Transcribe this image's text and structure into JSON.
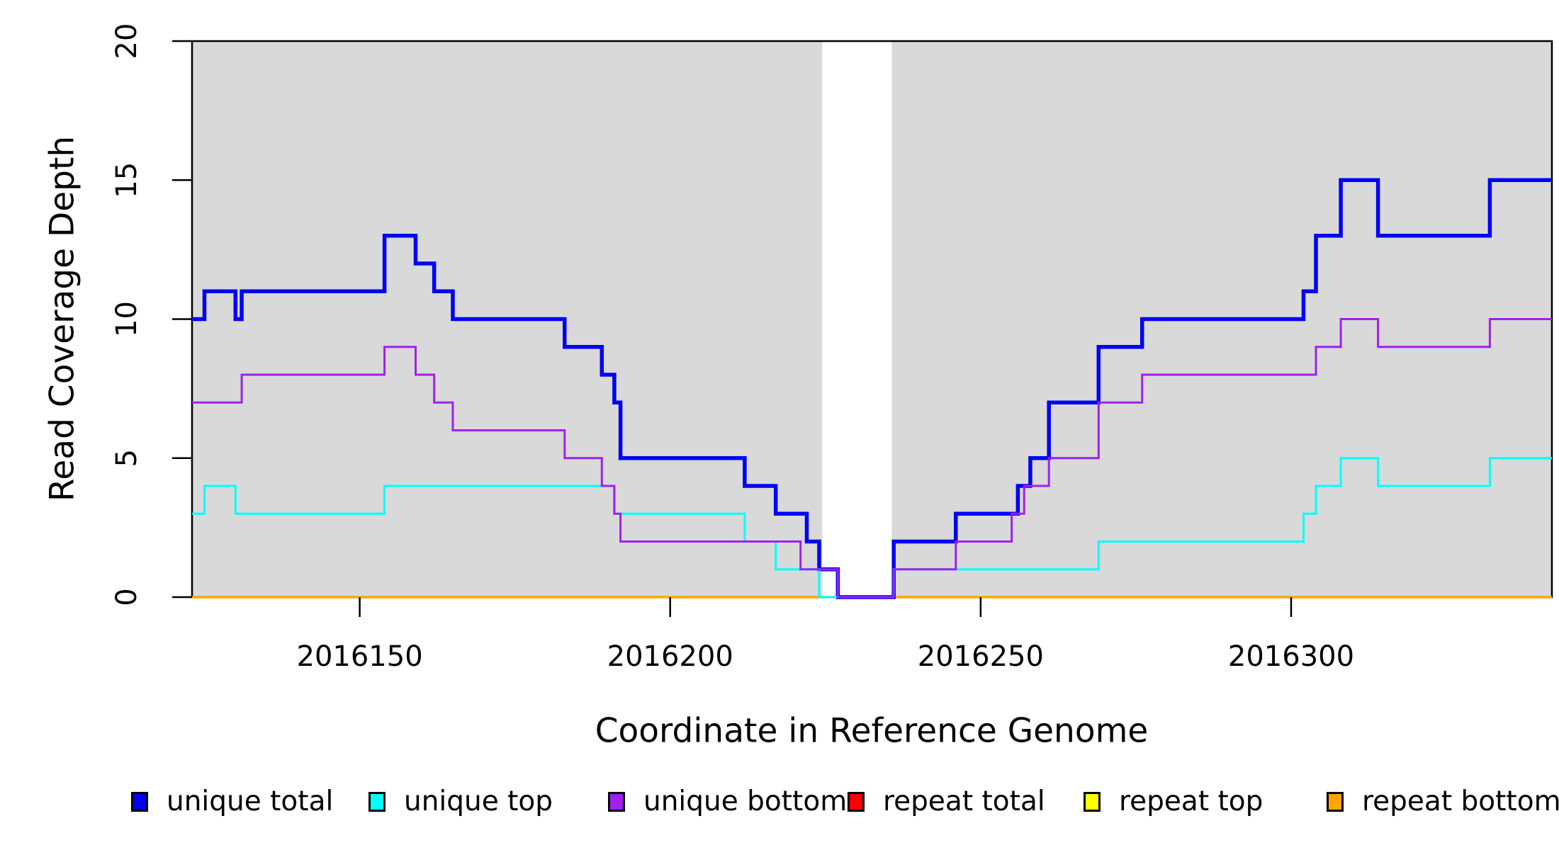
{
  "axes": {
    "x_label": "Coordinate in Reference Genome",
    "y_label": "Read Coverage Depth"
  },
  "legend": {
    "entries": [
      {
        "label": "unique total",
        "color": "#0000F5"
      },
      {
        "label": "unique top",
        "color": "#00FFFF"
      },
      {
        "label": "unique bottom",
        "color": "#A020F0"
      },
      {
        "label": "repeat total",
        "color": "#FF0000"
      },
      {
        "label": "repeat top",
        "color": "#FFFF00"
      },
      {
        "label": "repeat bottom",
        "color": "#FFA500"
      }
    ]
  },
  "chart_data": {
    "type": "line",
    "subtype": "step-coverage",
    "title": "",
    "xlabel": "Coordinate in Reference Genome",
    "ylabel": "Read Coverage Depth",
    "xlim": [
      2016123,
      2016342
    ],
    "ylim": [
      0,
      20
    ],
    "x_ticks": [
      2016150,
      2016200,
      2016250,
      2016300
    ],
    "y_ticks": [
      0,
      5,
      10,
      15,
      20
    ],
    "grid": false,
    "plot_background": "#D9D9D9",
    "plot_border_color": "#000000",
    "zero_coverage_band": {
      "x_start": 2016224.5,
      "x_end": 2016235.7,
      "color": "#FFFFFF"
    },
    "legend_position": "bottom",
    "series": [
      {
        "name": "repeat total",
        "color": "#FF0000",
        "width": 3,
        "steps": [
          [
            2016123,
            0
          ]
        ]
      },
      {
        "name": "repeat top",
        "color": "#FFFF00",
        "width": 3,
        "steps": [
          [
            2016123,
            0
          ]
        ]
      },
      {
        "name": "repeat bottom",
        "color": "#FFA500",
        "width": 3.5,
        "steps": [
          [
            2016123,
            0
          ]
        ]
      },
      {
        "name": "unique total",
        "color": "#0000F5",
        "width": 5.5,
        "steps": [
          [
            2016123,
            10
          ],
          [
            2016125,
            11
          ],
          [
            2016130,
            10
          ],
          [
            2016131,
            11
          ],
          [
            2016154,
            13
          ],
          [
            2016159,
            12
          ],
          [
            2016162,
            11
          ],
          [
            2016165,
            10
          ],
          [
            2016183,
            9
          ],
          [
            2016189,
            8
          ],
          [
            2016191,
            7
          ],
          [
            2016192,
            5
          ],
          [
            2016212,
            4
          ],
          [
            2016217,
            3
          ],
          [
            2016222,
            2
          ],
          [
            2016224,
            1
          ],
          [
            2016227,
            0
          ],
          [
            2016236,
            2
          ],
          [
            2016246,
            3
          ],
          [
            2016256,
            4
          ],
          [
            2016258,
            5
          ],
          [
            2016261,
            7
          ],
          [
            2016269,
            9
          ],
          [
            2016276,
            10
          ],
          [
            2016302,
            11
          ],
          [
            2016304,
            13
          ],
          [
            2016308,
            15
          ],
          [
            2016314,
            13
          ],
          [
            2016332,
            15
          ]
        ]
      },
      {
        "name": "unique top",
        "color": "#00FFFF",
        "width": 3,
        "steps": [
          [
            2016123,
            3
          ],
          [
            2016125,
            4
          ],
          [
            2016130,
            3
          ],
          [
            2016154,
            4
          ],
          [
            2016191,
            3
          ],
          [
            2016212,
            2
          ],
          [
            2016217,
            1
          ],
          [
            2016224,
            0
          ],
          [
            2016236,
            1
          ],
          [
            2016269,
            2
          ],
          [
            2016302,
            3
          ],
          [
            2016304,
            4
          ],
          [
            2016308,
            5
          ],
          [
            2016314,
            4
          ],
          [
            2016332,
            5
          ]
        ]
      },
      {
        "name": "unique bottom",
        "color": "#A020F0",
        "width": 3,
        "steps": [
          [
            2016123,
            7
          ],
          [
            2016131,
            8
          ],
          [
            2016154,
            9
          ],
          [
            2016159,
            8
          ],
          [
            2016162,
            7
          ],
          [
            2016165,
            6
          ],
          [
            2016183,
            5
          ],
          [
            2016189,
            4
          ],
          [
            2016191,
            3
          ],
          [
            2016192,
            2
          ],
          [
            2016221,
            1
          ],
          [
            2016227,
            0
          ],
          [
            2016236,
            1
          ],
          [
            2016246,
            2
          ],
          [
            2016255,
            3
          ],
          [
            2016257,
            4
          ],
          [
            2016261,
            5
          ],
          [
            2016269,
            7
          ],
          [
            2016276,
            8
          ],
          [
            2016304,
            9
          ],
          [
            2016308,
            10
          ],
          [
            2016314,
            9
          ],
          [
            2016332,
            10
          ]
        ]
      }
    ]
  }
}
